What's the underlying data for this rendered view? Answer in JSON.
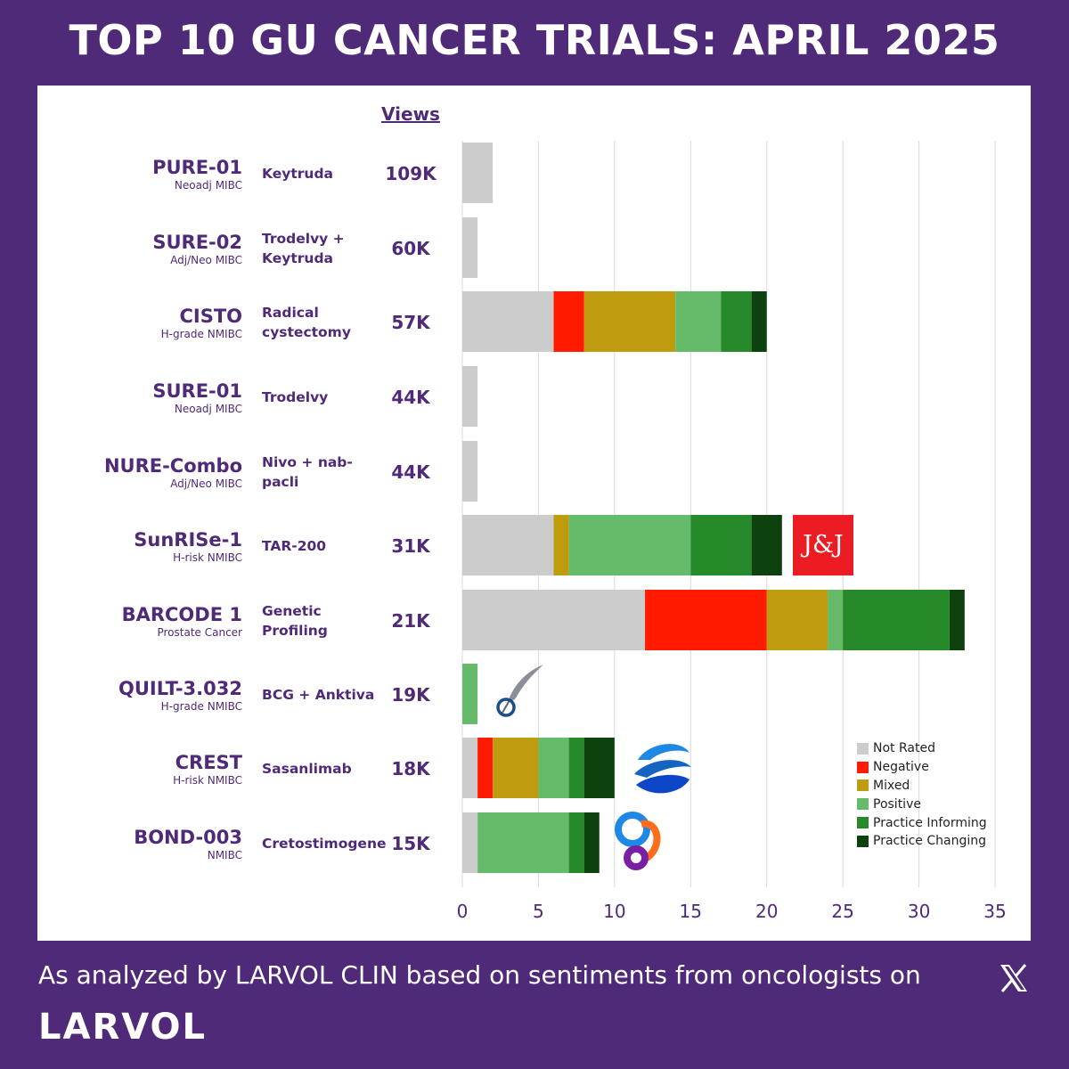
{
  "header": {
    "title": "TOP 10 GU CANCER TRIALS: APRIL 2025"
  },
  "table": {
    "views_header": "Views"
  },
  "rows": [
    {
      "trial": "PURE-01",
      "setting": "Neoadj MIBC",
      "drug": "Keytruda",
      "views": "109K"
    },
    {
      "trial": "SURE-02",
      "setting": "Adj/Neo MIBC",
      "drug": "Trodelvy + Keytruda",
      "views": "60K"
    },
    {
      "trial": "CISTO",
      "setting": "H-grade NMIBC",
      "drug": "Radical cystectomy",
      "views": "57K"
    },
    {
      "trial": "SURE-01",
      "setting": "Neoadj MIBC",
      "drug": "Trodelvy",
      "views": "44K"
    },
    {
      "trial": "NURE-Combo",
      "setting": "Adj/Neo MIBC",
      "drug": "Nivo + nab-pacli",
      "views": "44K"
    },
    {
      "trial": "SunRISe-1",
      "setting": "H-risk NMIBC",
      "drug": "TAR-200",
      "views": "31K"
    },
    {
      "trial": "BARCODE 1",
      "setting": "Prostate Cancer",
      "drug": "Genetic Profiling",
      "views": "21K"
    },
    {
      "trial": "QUILT-3.032",
      "setting": "H-grade NMIBC",
      "drug": "BCG + Anktiva",
      "views": "19K"
    },
    {
      "trial": "CREST",
      "setting": "H-risk NMIBC",
      "drug": "Sasanlimab",
      "views": "18K"
    },
    {
      "trial": "BOND-003",
      "setting": "NMIBC",
      "drug": "Cretostimogene",
      "views": "15K"
    }
  ],
  "chart_data": {
    "type": "bar",
    "orientation": "horizontal",
    "stacked": true,
    "categories": [
      "PURE-01",
      "SURE-02",
      "CISTO",
      "SURE-01",
      "NURE-Combo",
      "SunRISe-1",
      "BARCODE 1",
      "QUILT-3.032",
      "CREST",
      "BOND-003"
    ],
    "series": [
      {
        "name": "Not Rated",
        "color": "#cccccc",
        "values": [
          2,
          1,
          6,
          1,
          1,
          6,
          12,
          0,
          1,
          1
        ]
      },
      {
        "name": "Negative",
        "color": "#ff1a00",
        "values": [
          0,
          0,
          2,
          0,
          0,
          0,
          8,
          0,
          1,
          0
        ]
      },
      {
        "name": "Mixed",
        "color": "#bf9b0e",
        "values": [
          0,
          0,
          6,
          0,
          0,
          1,
          4,
          0,
          3,
          0
        ]
      },
      {
        "name": "Positive",
        "color": "#66bb6a",
        "values": [
          0,
          0,
          3,
          0,
          0,
          8,
          1,
          1,
          2,
          6
        ]
      },
      {
        "name": "Practice Informing",
        "color": "#268a2a",
        "values": [
          0,
          0,
          2,
          0,
          0,
          4,
          7,
          0,
          1,
          1
        ]
      },
      {
        "name": "Practice Changing",
        "color": "#0d420f",
        "values": [
          0,
          0,
          1,
          0,
          0,
          2,
          1,
          0,
          2,
          1
        ]
      }
    ],
    "xlim": [
      0,
      35
    ],
    "x_ticks": [
      0,
      5,
      10,
      15,
      20,
      25,
      30,
      35
    ],
    "grid": "vertical",
    "legend": "bottom-right"
  },
  "logos": {
    "sunrise": "J&J",
    "quilt": "feather-logo",
    "crest": "swirl-logo",
    "bond": "cg-logo"
  },
  "footer": {
    "text": "As analyzed by LARVOL CLIN based on sentiments from oncologists on",
    "x_icon": "x-icon",
    "brand": "LARVOL"
  }
}
